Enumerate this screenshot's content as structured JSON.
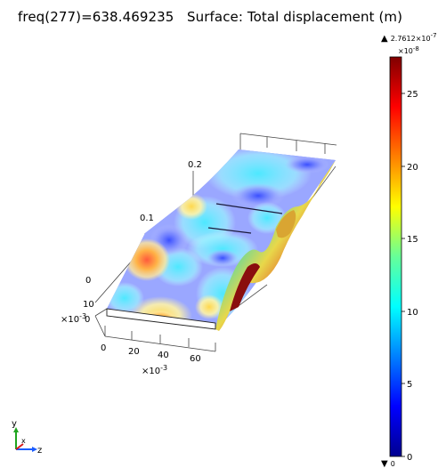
{
  "title": "freq(277)=638.469235   Surface: Total displacement (m)",
  "colorbar": {
    "max_marker": "▲",
    "max_value": "2.7612×10",
    "max_exp": "-7",
    "scale_label": "×10",
    "scale_exp": "-8",
    "min_marker": "▼",
    "min_value": "0",
    "ticks": [
      "0",
      "5",
      "10",
      "15",
      "20",
      "25"
    ]
  },
  "plot": {
    "y_ticks": [
      "0",
      "0.1",
      "0.2"
    ],
    "z_ticks": [
      "0",
      "10"
    ],
    "z_scale": "×10",
    "z_scale_exp": "-3",
    "x_ticks": [
      "0",
      "20",
      "40",
      "60"
    ],
    "x_scale": "×10",
    "x_scale_exp": "-3"
  },
  "triad": {
    "y": "y",
    "x": "x",
    "z": "z"
  }
}
